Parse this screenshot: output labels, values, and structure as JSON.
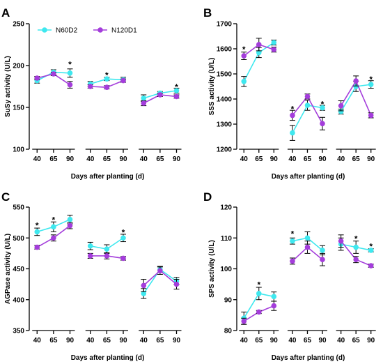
{
  "chart_data": [
    {
      "panel": "A",
      "type": "line",
      "ylabel": "SuSy activity  (U/L)",
      "xlabel": "Days after planting  (d)",
      "ylim": [
        100,
        250
      ],
      "yticks": [
        100,
        150,
        200,
        250
      ],
      "x": [
        "40",
        "65",
        "90",
        "40",
        "65",
        "90",
        "40",
        "65",
        "90"
      ],
      "groups": 3,
      "legend": true,
      "series": [
        {
          "name": "N60D2",
          "color": "#3fe8ef",
          "values": [
            182,
            192,
            191,
            178,
            184,
            183,
            161,
            167,
            170
          ],
          "err": [
            3,
            3,
            5,
            3,
            2,
            3,
            4,
            2,
            3
          ]
        },
        {
          "name": "N120D1",
          "color": "#a43ddb",
          "values": [
            185,
            190,
            177,
            175,
            174,
            182,
            155,
            165,
            163
          ],
          "err": [
            2,
            2,
            4,
            2,
            2,
            2,
            3,
            2,
            2
          ]
        }
      ],
      "stars": [
        {
          "index": 2,
          "y": 202
        },
        {
          "index": 4,
          "y": 189
        },
        {
          "index": 8,
          "y": 175
        }
      ]
    },
    {
      "panel": "B",
      "type": "line",
      "ylabel": "SSS activity  (U/L)",
      "xlabel": "Days after planting  (d)",
      "ylim": [
        1200,
        1700
      ],
      "yticks": [
        1200,
        1300,
        1400,
        1500,
        1600,
        1700
      ],
      "x": [
        "40",
        "65",
        "90",
        "40",
        "65",
        "90",
        "40",
        "65",
        "90"
      ],
      "groups": 3,
      "legend": false,
      "series": [
        {
          "name": "N60D2",
          "color": "#3fe8ef",
          "values": [
            1470,
            1585,
            1625,
            1265,
            1375,
            1365,
            1350,
            1450,
            1458
          ],
          "err": [
            20,
            20,
            10,
            30,
            20,
            10,
            10,
            20,
            15
          ]
        },
        {
          "name": "N120D1",
          "color": "#a43ddb",
          "values": [
            1572,
            1617,
            1597,
            1335,
            1410,
            1302,
            1373,
            1472,
            1335
          ],
          "err": [
            15,
            25,
            10,
            20,
            10,
            25,
            20,
            20,
            10
          ]
        }
      ],
      "stars": [
        {
          "index": 0,
          "y": 1600
        },
        {
          "index": 3,
          "y": 1362
        },
        {
          "index": 5,
          "y": 1382
        },
        {
          "index": 8,
          "y": 1480
        }
      ]
    },
    {
      "panel": "C",
      "type": "line",
      "ylabel": "AGPase activity  (U/L)",
      "xlabel": "Days after planting  (d)",
      "ylim": [
        350,
        550
      ],
      "yticks": [
        350,
        400,
        450,
        500,
        550
      ],
      "x": [
        "40",
        "65",
        "90",
        "40",
        "65",
        "90",
        "40",
        "65",
        "90"
      ],
      "groups": 3,
      "legend": false,
      "series": [
        {
          "name": "N60D2",
          "color": "#3fe8ef",
          "values": [
            510,
            518,
            530,
            487,
            482,
            500,
            410,
            449,
            430
          ],
          "err": [
            6,
            8,
            7,
            6,
            7,
            6,
            8,
            5,
            6
          ]
        },
        {
          "name": "N120D1",
          "color": "#a43ddb",
          "values": [
            485,
            500,
            520,
            471,
            471,
            467,
            423,
            447,
            425
          ],
          "err": [
            3,
            5,
            5,
            4,
            5,
            3,
            10,
            6,
            8
          ]
        }
      ],
      "stars": [
        {
          "index": 0,
          "y": 521
        },
        {
          "index": 1,
          "y": 530
        },
        {
          "index": 5,
          "y": 510
        }
      ]
    },
    {
      "panel": "D",
      "type": "line",
      "ylabel": "SPS activity  (U/L)",
      "xlabel": "Days after planting  (d)",
      "ylim": [
        80,
        120
      ],
      "yticks": [
        80,
        90,
        100,
        110,
        120
      ],
      "x": [
        "40",
        "65",
        "90",
        "40",
        "65",
        "90",
        "40",
        "65",
        "90"
      ],
      "groups": 3,
      "legend": false,
      "series": [
        {
          "name": "N60D2",
          "color": "#3fe8ef",
          "values": [
            84,
            92,
            91,
            109,
            110,
            106,
            108,
            107,
            106
          ],
          "err": [
            2,
            2,
            1.5,
            1,
            2,
            1.5,
            2,
            2,
            0.5
          ]
        },
        {
          "name": "N120D1",
          "color": "#a43ddb",
          "values": [
            83,
            86,
            88,
            102.5,
            107,
            103,
            109,
            103,
            101
          ],
          "err": [
            1,
            0.5,
            1.5,
            1,
            2,
            2,
            2,
            1,
            0.5
          ]
        }
      ],
      "stars": [
        {
          "index": 1,
          "y": 95
        },
        {
          "index": 3,
          "y": 111.5
        },
        {
          "index": 7,
          "y": 110
        },
        {
          "index": 8,
          "y": 107.5
        }
      ]
    }
  ]
}
